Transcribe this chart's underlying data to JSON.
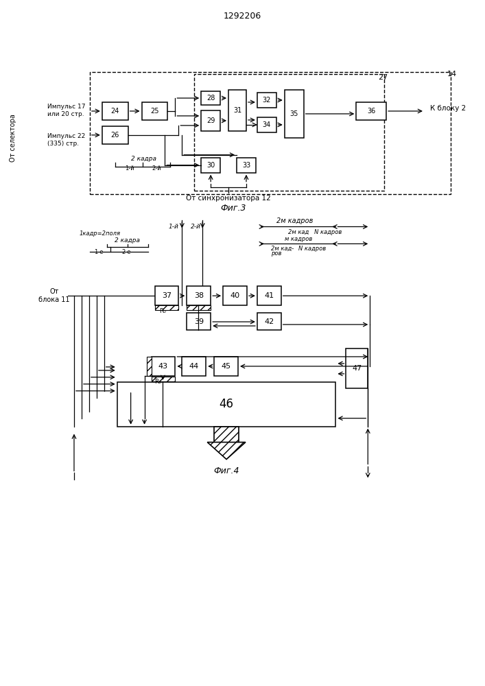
{
  "title": "1292206",
  "fig3_label": "Фиг.3",
  "fig4_label": "Фиг.4",
  "bg_color": "#ffffff"
}
